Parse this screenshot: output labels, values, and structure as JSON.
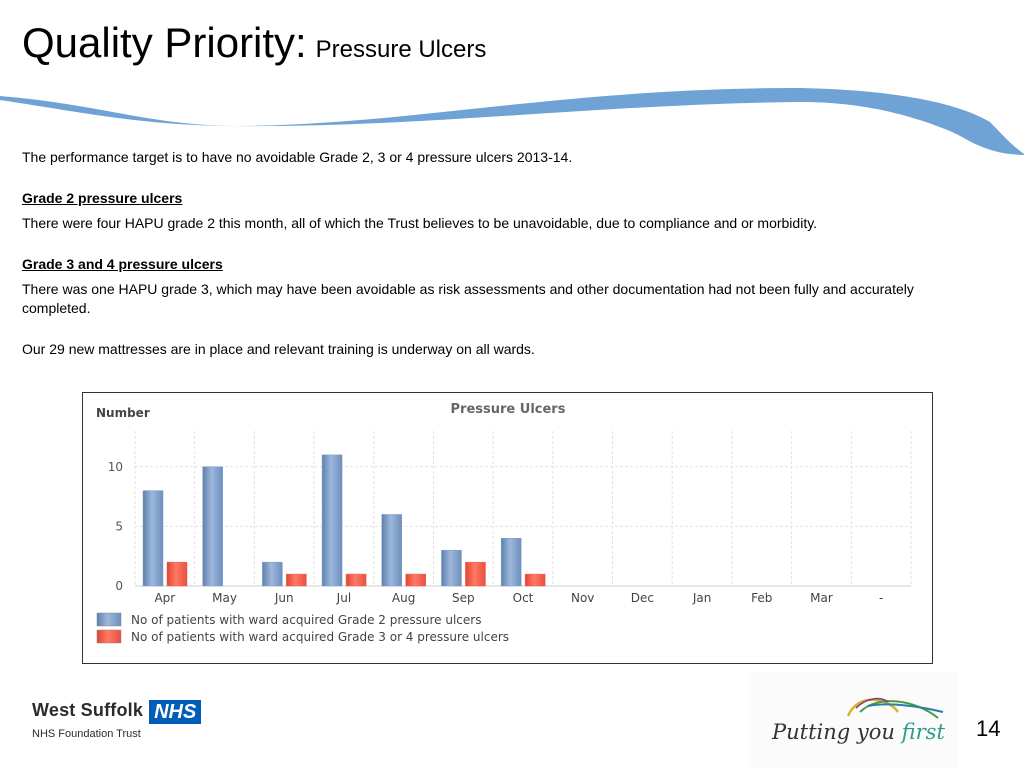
{
  "slide": {
    "title_main": "Quality Priority:",
    "title_sub": "Pressure Ulcers",
    "page_number": "14"
  },
  "content": {
    "intro": "The performance target is to have no avoidable Grade 2, 3 or 4 pressure ulcers 2013-14.",
    "grade2_heading": "Grade 2 pressure ulcers",
    "grade2_text": "There were four HAPU grade 2 this month, all of which the Trust believes to be unavoidable, due to compliance and or morbidity.",
    "grade34_heading": "Grade 3 and 4 pressure ulcers",
    "grade34_text": "There was one HAPU grade 3, which may have been avoidable as risk assessments and other documentation had not been fully and accurately completed.",
    "mattress_text": "Our 29 new mattresses are in place and relevant training is underway on all wards."
  },
  "footer": {
    "org_name": "West Suffolk",
    "nhs_badge": "NHS",
    "org_sub": "NHS Foundation Trust",
    "tagline_start": "Putting you",
    "tagline_accent": "first"
  },
  "colors": {
    "swoosh": "#6fa3d6",
    "grade2_bar": "#7f9fc8",
    "grade34_bar": "#f25b4a",
    "nhs_blue": "#005EB8"
  },
  "chart_data": {
    "type": "bar",
    "title": "Pressure Ulcers",
    "ylabel": "Number",
    "xlabel": "",
    "categories": [
      "Apr",
      "May",
      "Jun",
      "Jul",
      "Aug",
      "Sep",
      "Oct",
      "Nov",
      "Dec",
      "Jan",
      "Feb",
      "Mar",
      "-"
    ],
    "series": [
      {
        "name": "No of patients with ward acquired Grade 2 pressure ulcers",
        "values": [
          8,
          10,
          2,
          11,
          6,
          3,
          4,
          null,
          null,
          null,
          null,
          null,
          null
        ]
      },
      {
        "name": "No of patients with ward acquired Grade 3 or 4 pressure ulcers",
        "values": [
          2,
          0,
          1,
          1,
          1,
          2,
          1,
          null,
          null,
          null,
          null,
          null,
          null
        ]
      }
    ],
    "ylim": [
      0,
      13
    ],
    "yticks": [
      0,
      5,
      10
    ],
    "grid": true,
    "legend": "bottom-left"
  }
}
